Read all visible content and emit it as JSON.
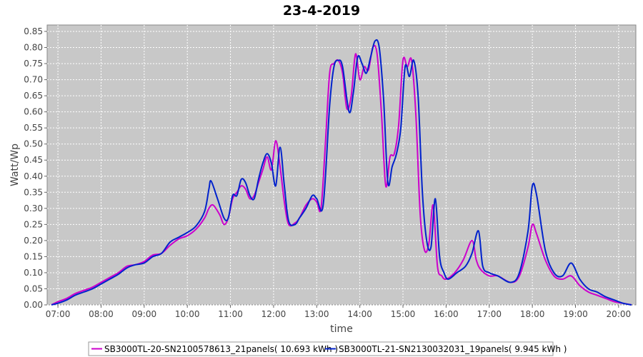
{
  "chart_data": {
    "type": "line",
    "title": "23-4-2019",
    "xlabel": "time",
    "ylabel": "Watt/Wp",
    "xlim": [
      6.75,
      20.4
    ],
    "ylim": [
      0,
      0.87
    ],
    "x_ticks": [
      "07:00",
      "08:00",
      "09:00",
      "10:00",
      "11:00",
      "12:00",
      "13:00",
      "14:00",
      "15:00",
      "16:00",
      "17:00",
      "18:00",
      "19:00",
      "20:00"
    ],
    "y_ticks": [
      "0.00",
      "0.05",
      "0.10",
      "0.15",
      "0.20",
      "0.25",
      "0.30",
      "0.35",
      "0.40",
      "0.45",
      "0.50",
      "0.55",
      "0.60",
      "0.65",
      "0.70",
      "0.75",
      "0.80",
      "0.85"
    ],
    "grid": true,
    "legend_position": "bottom",
    "series": [
      {
        "name": "SB3000TL-20-SN2100578613_21panels( 10.693 kWh )",
        "color": "#cc00cc",
        "points": [
          [
            6.85,
            0.0
          ],
          [
            7.0,
            0.01
          ],
          [
            7.2,
            0.02
          ],
          [
            7.4,
            0.035
          ],
          [
            7.6,
            0.045
          ],
          [
            7.8,
            0.055
          ],
          [
            8.0,
            0.07
          ],
          [
            8.2,
            0.085
          ],
          [
            8.4,
            0.1
          ],
          [
            8.6,
            0.12
          ],
          [
            8.8,
            0.125
          ],
          [
            9.0,
            0.135
          ],
          [
            9.2,
            0.155
          ],
          [
            9.4,
            0.16
          ],
          [
            9.6,
            0.185
          ],
          [
            9.8,
            0.205
          ],
          [
            10.0,
            0.215
          ],
          [
            10.2,
            0.235
          ],
          [
            10.4,
            0.27
          ],
          [
            10.5,
            0.3
          ],
          [
            10.6,
            0.31
          ],
          [
            10.75,
            0.28
          ],
          [
            10.85,
            0.25
          ],
          [
            10.95,
            0.27
          ],
          [
            11.05,
            0.33
          ],
          [
            11.15,
            0.35
          ],
          [
            11.25,
            0.37
          ],
          [
            11.35,
            0.36
          ],
          [
            11.45,
            0.33
          ],
          [
            11.55,
            0.34
          ],
          [
            11.65,
            0.38
          ],
          [
            11.75,
            0.42
          ],
          [
            11.85,
            0.46
          ],
          [
            11.95,
            0.42
          ],
          [
            12.05,
            0.51
          ],
          [
            12.15,
            0.43
          ],
          [
            12.25,
            0.32
          ],
          [
            12.35,
            0.25
          ],
          [
            12.5,
            0.255
          ],
          [
            12.6,
            0.27
          ],
          [
            12.75,
            0.31
          ],
          [
            12.9,
            0.33
          ],
          [
            13.0,
            0.32
          ],
          [
            13.1,
            0.3
          ],
          [
            13.2,
            0.5
          ],
          [
            13.3,
            0.72
          ],
          [
            13.4,
            0.75
          ],
          [
            13.5,
            0.76
          ],
          [
            13.6,
            0.72
          ],
          [
            13.7,
            0.61
          ],
          [
            13.8,
            0.65
          ],
          [
            13.9,
            0.78
          ],
          [
            14.0,
            0.7
          ],
          [
            14.1,
            0.74
          ],
          [
            14.2,
            0.73
          ],
          [
            14.3,
            0.8
          ],
          [
            14.4,
            0.78
          ],
          [
            14.5,
            0.6
          ],
          [
            14.6,
            0.37
          ],
          [
            14.7,
            0.46
          ],
          [
            14.8,
            0.47
          ],
          [
            14.9,
            0.56
          ],
          [
            15.0,
            0.76
          ],
          [
            15.1,
            0.74
          ],
          [
            15.2,
            0.76
          ],
          [
            15.3,
            0.59
          ],
          [
            15.4,
            0.28
          ],
          [
            15.5,
            0.17
          ],
          [
            15.6,
            0.19
          ],
          [
            15.7,
            0.31
          ],
          [
            15.8,
            0.12
          ],
          [
            15.9,
            0.09
          ],
          [
            16.0,
            0.08
          ],
          [
            16.2,
            0.1
          ],
          [
            16.4,
            0.14
          ],
          [
            16.6,
            0.2
          ],
          [
            16.7,
            0.14
          ],
          [
            16.8,
            0.11
          ],
          [
            17.0,
            0.09
          ],
          [
            17.2,
            0.09
          ],
          [
            17.5,
            0.07
          ],
          [
            17.7,
            0.09
          ],
          [
            17.9,
            0.18
          ],
          [
            18.0,
            0.25
          ],
          [
            18.1,
            0.22
          ],
          [
            18.3,
            0.14
          ],
          [
            18.5,
            0.09
          ],
          [
            18.7,
            0.08
          ],
          [
            18.9,
            0.09
          ],
          [
            19.1,
            0.06
          ],
          [
            19.3,
            0.04
          ],
          [
            19.5,
            0.03
          ],
          [
            19.7,
            0.02
          ],
          [
            19.9,
            0.01
          ],
          [
            20.1,
            0.005
          ],
          [
            20.3,
            0.0
          ]
        ]
      },
      {
        "name": "SB3000TL-21-SN2130032031_19panels( 9.945 kWh )",
        "color": "#0022cc",
        "points": [
          [
            6.85,
            0.0
          ],
          [
            7.0,
            0.005
          ],
          [
            7.2,
            0.015
          ],
          [
            7.4,
            0.03
          ],
          [
            7.6,
            0.04
          ],
          [
            7.8,
            0.05
          ],
          [
            8.0,
            0.065
          ],
          [
            8.2,
            0.08
          ],
          [
            8.4,
            0.095
          ],
          [
            8.6,
            0.115
          ],
          [
            8.8,
            0.125
          ],
          [
            9.0,
            0.13
          ],
          [
            9.2,
            0.15
          ],
          [
            9.4,
            0.16
          ],
          [
            9.6,
            0.195
          ],
          [
            9.8,
            0.21
          ],
          [
            10.0,
            0.225
          ],
          [
            10.2,
            0.245
          ],
          [
            10.4,
            0.29
          ],
          [
            10.5,
            0.36
          ],
          [
            10.55,
            0.385
          ],
          [
            10.7,
            0.33
          ],
          [
            10.85,
            0.27
          ],
          [
            10.95,
            0.27
          ],
          [
            11.05,
            0.34
          ],
          [
            11.15,
            0.34
          ],
          [
            11.25,
            0.39
          ],
          [
            11.35,
            0.38
          ],
          [
            11.45,
            0.34
          ],
          [
            11.55,
            0.33
          ],
          [
            11.65,
            0.39
          ],
          [
            11.75,
            0.44
          ],
          [
            11.85,
            0.47
          ],
          [
            11.95,
            0.44
          ],
          [
            12.05,
            0.37
          ],
          [
            12.15,
            0.49
          ],
          [
            12.25,
            0.37
          ],
          [
            12.35,
            0.26
          ],
          [
            12.5,
            0.25
          ],
          [
            12.6,
            0.27
          ],
          [
            12.75,
            0.3
          ],
          [
            12.9,
            0.34
          ],
          [
            13.0,
            0.33
          ],
          [
            13.15,
            0.31
          ],
          [
            13.3,
            0.62
          ],
          [
            13.4,
            0.74
          ],
          [
            13.5,
            0.76
          ],
          [
            13.6,
            0.74
          ],
          [
            13.75,
            0.6
          ],
          [
            13.85,
            0.66
          ],
          [
            13.95,
            0.77
          ],
          [
            14.05,
            0.75
          ],
          [
            14.15,
            0.72
          ],
          [
            14.25,
            0.77
          ],
          [
            14.35,
            0.82
          ],
          [
            14.45,
            0.8
          ],
          [
            14.55,
            0.64
          ],
          [
            14.65,
            0.38
          ],
          [
            14.75,
            0.43
          ],
          [
            14.85,
            0.47
          ],
          [
            14.95,
            0.55
          ],
          [
            15.05,
            0.74
          ],
          [
            15.15,
            0.71
          ],
          [
            15.25,
            0.76
          ],
          [
            15.35,
            0.65
          ],
          [
            15.45,
            0.35
          ],
          [
            15.55,
            0.2
          ],
          [
            15.65,
            0.18
          ],
          [
            15.75,
            0.33
          ],
          [
            15.85,
            0.15
          ],
          [
            15.95,
            0.1
          ],
          [
            16.05,
            0.08
          ],
          [
            16.25,
            0.1
          ],
          [
            16.45,
            0.12
          ],
          [
            16.6,
            0.16
          ],
          [
            16.75,
            0.23
          ],
          [
            16.85,
            0.12
          ],
          [
            17.0,
            0.1
          ],
          [
            17.2,
            0.09
          ],
          [
            17.5,
            0.07
          ],
          [
            17.7,
            0.1
          ],
          [
            17.9,
            0.23
          ],
          [
            18.0,
            0.37
          ],
          [
            18.1,
            0.34
          ],
          [
            18.3,
            0.17
          ],
          [
            18.5,
            0.1
          ],
          [
            18.7,
            0.09
          ],
          [
            18.9,
            0.13
          ],
          [
            19.1,
            0.08
          ],
          [
            19.3,
            0.05
          ],
          [
            19.5,
            0.04
          ],
          [
            19.7,
            0.025
          ],
          [
            19.9,
            0.015
          ],
          [
            20.1,
            0.005
          ],
          [
            20.3,
            0.0
          ]
        ]
      }
    ]
  }
}
